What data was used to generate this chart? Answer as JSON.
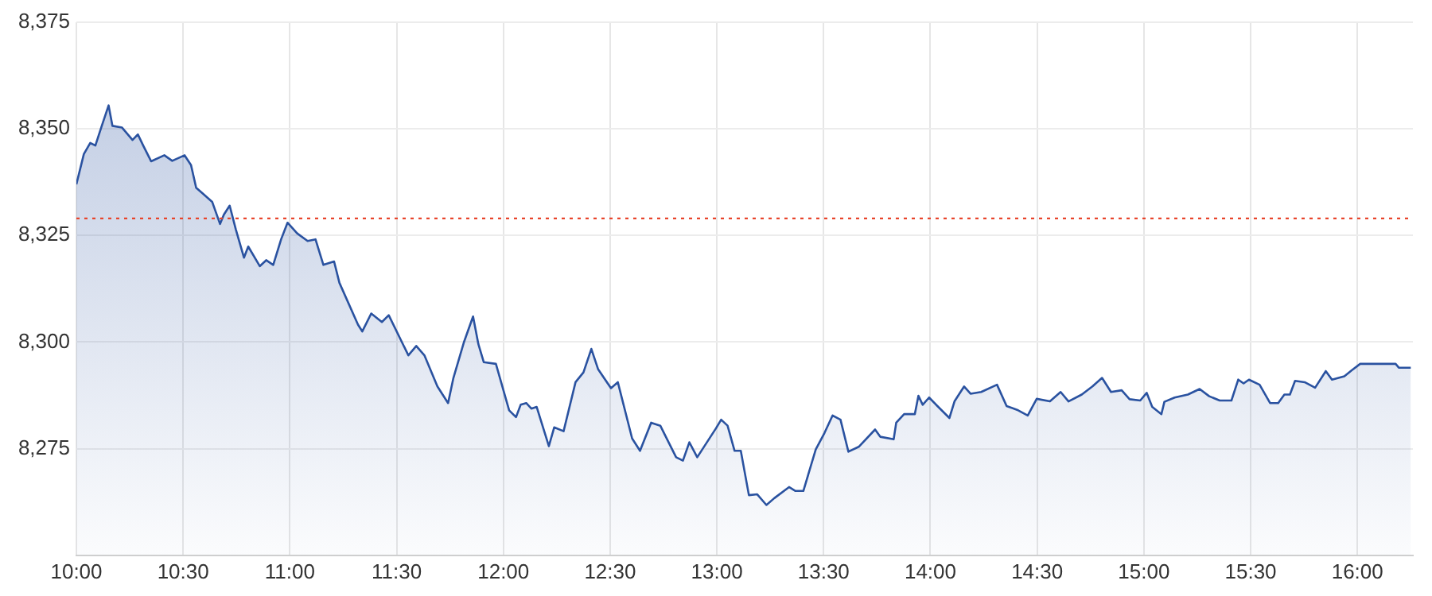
{
  "chart_data": {
    "type": "area",
    "x": [
      10.0,
      10.035,
      10.065,
      10.089,
      10.119,
      10.151,
      10.169,
      10.214,
      10.263,
      10.288,
      10.313,
      10.35,
      10.412,
      10.449,
      10.507,
      10.537,
      10.561,
      10.636,
      10.673,
      10.691,
      10.718,
      10.747,
      10.785,
      10.805,
      10.859,
      10.889,
      10.922,
      10.959,
      10.989,
      11.034,
      11.083,
      11.12,
      11.157,
      11.207,
      11.232,
      11.319,
      11.339,
      11.381,
      11.431,
      11.463,
      11.555,
      11.592,
      11.63,
      11.691,
      11.741,
      11.766,
      11.816,
      11.858,
      11.883,
      11.908,
      11.965,
      12.027,
      12.059,
      12.081,
      12.107,
      12.131,
      12.156,
      12.213,
      12.238,
      12.282,
      12.338,
      12.375,
      12.412,
      12.444,
      12.504,
      12.536,
      12.603,
      12.64,
      12.692,
      12.735,
      12.767,
      12.809,
      12.841,
      12.871,
      12.908,
      12.996,
      13.02,
      13.05,
      13.083,
      13.112,
      13.15,
      13.189,
      13.232,
      13.269,
      13.338,
      13.368,
      13.405,
      13.463,
      13.504,
      13.542,
      13.579,
      13.616,
      13.666,
      13.741,
      13.765,
      13.828,
      13.84,
      13.877,
      13.927,
      13.944,
      13.964,
      13.994,
      14.033,
      14.089,
      14.113,
      14.158,
      14.188,
      14.238,
      14.312,
      14.357,
      14.411,
      14.456,
      14.498,
      14.56,
      14.61,
      14.647,
      14.709,
      14.759,
      14.804,
      14.846,
      14.896,
      14.933,
      14.983,
      15.013,
      15.039,
      15.082,
      15.096,
      15.144,
      15.206,
      15.261,
      15.306,
      15.355,
      15.41,
      15.442,
      15.467,
      15.492,
      15.542,
      15.591,
      15.629,
      15.658,
      15.684,
      15.708,
      15.753,
      15.802,
      15.852,
      15.881,
      15.939,
      15.971,
      16.013,
      16.179,
      16.194,
      16.25
    ],
    "series": [
      {
        "color": "#2a52a0",
        "values": [
          8337.0,
          8344.1,
          8346.7,
          8346.1,
          8350.7,
          8355.5,
          8350.7,
          8350.3,
          8347.4,
          8348.7,
          8346.1,
          8342.4,
          8343.8,
          8342.5,
          8343.8,
          8341.5,
          8336.2,
          8332.9,
          8327.7,
          8329.9,
          8332.0,
          8326.4,
          8319.8,
          8322.4,
          8317.8,
          8319.2,
          8318.1,
          8324.1,
          8328.0,
          8325.5,
          8323.7,
          8324.1,
          8318.1,
          8318.9,
          8313.9,
          8304.1,
          8302.5,
          8306.7,
          8304.7,
          8306.3,
          8296.9,
          8299.1,
          8296.9,
          8289.6,
          8285.7,
          8291.6,
          8300.1,
          8306.0,
          8299.5,
          8295.3,
          8294.9,
          8284.0,
          8282.4,
          8285.3,
          8285.7,
          8284.4,
          8284.8,
          8275.6,
          8280.0,
          8279.1,
          8290.6,
          8292.9,
          8298.4,
          8293.6,
          8289.2,
          8290.6,
          8277.4,
          8274.5,
          8281.1,
          8280.4,
          8277.2,
          8273.0,
          8272.2,
          8276.5,
          8273.0,
          8279.8,
          8281.8,
          8280.4,
          8274.5,
          8274.5,
          8264.1,
          8264.3,
          8261.8,
          8263.4,
          8266.0,
          8265.1,
          8265.1,
          8274.8,
          8278.7,
          8282.8,
          8281.8,
          8274.3,
          8275.5,
          8279.5,
          8277.8,
          8277.2,
          8281.1,
          8283.1,
          8283.1,
          8287.4,
          8285.3,
          8287.0,
          8285.0,
          8282.2,
          8286.1,
          8289.6,
          8287.9,
          8288.3,
          8290.0,
          8285.0,
          8284.0,
          8282.8,
          8286.7,
          8286.1,
          8288.3,
          8286.1,
          8287.7,
          8289.6,
          8291.6,
          8288.3,
          8288.7,
          8286.6,
          8286.3,
          8288.1,
          8284.8,
          8283.1,
          8286.0,
          8287.0,
          8287.7,
          8289.0,
          8287.3,
          8286.3,
          8286.3,
          8291.2,
          8290.3,
          8291.2,
          8290.0,
          8285.7,
          8285.7,
          8287.7,
          8287.7,
          8290.9,
          8290.6,
          8289.3,
          8293.2,
          8291.2,
          8292.0,
          8293.3,
          8294.9,
          8294.9,
          8294.0,
          8294.0
        ]
      }
    ],
    "xlim": [
      10,
      16.26
    ],
    "xticks": [
      {
        "value": 10,
        "label": "10:00"
      },
      {
        "value": 10.5,
        "label": "10:30"
      },
      {
        "value": 11,
        "label": "11:00"
      },
      {
        "value": 11.5,
        "label": "11:30"
      },
      {
        "value": 12,
        "label": "12:00"
      },
      {
        "value": 12.5,
        "label": "12:30"
      },
      {
        "value": 13,
        "label": "13:00"
      },
      {
        "value": 13.5,
        "label": "13:30"
      },
      {
        "value": 14,
        "label": "14:00"
      },
      {
        "value": 14.5,
        "label": "14:30"
      },
      {
        "value": 15,
        "label": "15:00"
      },
      {
        "value": 15.5,
        "label": "15:30"
      },
      {
        "value": 16,
        "label": "16:00"
      }
    ],
    "ylim": [
      8250,
      8375
    ],
    "yticks": [
      {
        "value": 8250,
        "label": null
      },
      {
        "value": 8275,
        "label": "8,275"
      },
      {
        "value": 8300,
        "label": "8,300"
      },
      {
        "value": 8325,
        "label": "8,325"
      },
      {
        "value": 8350,
        "label": "8,350"
      },
      {
        "value": 8375,
        "label": "8,375"
      }
    ],
    "ref_lines": [
      {
        "axis": "y",
        "value": 8329,
        "color": "#e8452c",
        "line_style": "dotted"
      }
    ],
    "grid": true
  }
}
